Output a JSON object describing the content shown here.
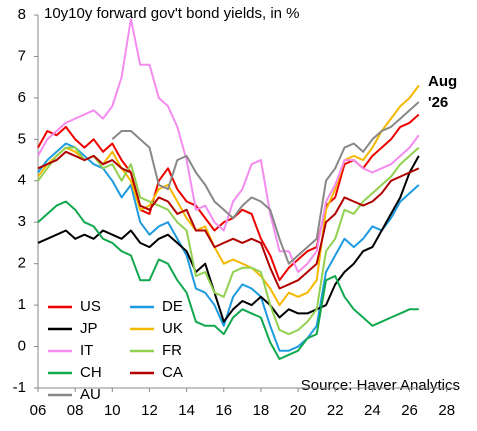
{
  "chart_data": {
    "type": "line",
    "title": "10y10y forward gov't bond yields, in %",
    "annotations": [
      "Aug",
      "'26"
    ],
    "source": "Source: Haver Analytics",
    "annotation_color": "#e00000",
    "legend": "lower left",
    "xlim": [
      2006,
      2028.5
    ],
    "ylim": [
      -1,
      8
    ],
    "yticks": [
      -1,
      0,
      1,
      2,
      3,
      4,
      5,
      6,
      7,
      8
    ],
    "xticks": [
      {
        "value": 2006,
        "label": "06"
      },
      {
        "value": 2008,
        "label": "08"
      },
      {
        "value": 2010,
        "label": "10"
      },
      {
        "value": 2012,
        "label": "12"
      },
      {
        "value": 2014,
        "label": "14"
      },
      {
        "value": 2016,
        "label": "16"
      },
      {
        "value": 2018,
        "label": "18"
      },
      {
        "value": 2020,
        "label": "20"
      },
      {
        "value": 2022,
        "label": "22"
      },
      {
        "value": 2024,
        "label": "24"
      },
      {
        "value": 2026,
        "label": "26"
      },
      {
        "value": 2028,
        "label": "28"
      }
    ],
    "x": [
      2006,
      2006.5,
      2007,
      2007.5,
      2008,
      2008.5,
      2009,
      2009.5,
      2010,
      2010.5,
      2011,
      2011.5,
      2012,
      2012.5,
      2013,
      2013.5,
      2014,
      2014.5,
      2015,
      2015.5,
      2016,
      2016.5,
      2017,
      2017.5,
      2018,
      2018.5,
      2019,
      2019.5,
      2020,
      2020.5,
      2021,
      2021.5,
      2022,
      2022.5,
      2023,
      2023.5,
      2024,
      2024.5,
      2025,
      2025.5,
      2026,
      2026.5
    ],
    "series": [
      {
        "name": "US",
        "color": "#ee0000",
        "values": [
          4.8,
          5.2,
          5.1,
          5.3,
          5.0,
          4.8,
          5.0,
          4.7,
          4.9,
          4.5,
          4.2,
          3.3,
          3.2,
          4.0,
          4.3,
          3.8,
          3.5,
          3.4,
          3.1,
          2.8,
          3.0,
          3.1,
          3.3,
          3.2,
          2.6,
          2.2,
          1.6,
          1.9,
          2.1,
          2.3,
          2.4,
          3.4,
          3.6,
          4.4,
          4.5,
          4.3,
          4.6,
          4.8,
          5.0,
          5.3,
          5.4,
          5.6
        ]
      },
      {
        "name": "DE",
        "color": "#1e9be0",
        "values": [
          4.2,
          4.5,
          4.7,
          4.9,
          4.8,
          4.6,
          4.4,
          4.3,
          4.0,
          3.6,
          3.9,
          3.0,
          2.7,
          2.9,
          3.0,
          2.6,
          2.2,
          1.4,
          1.3,
          1.0,
          0.5,
          1.2,
          1.5,
          1.4,
          1.2,
          0.5,
          -0.1,
          -0.1,
          0.0,
          0.2,
          0.5,
          1.8,
          2.2,
          2.6,
          2.4,
          2.6,
          2.9,
          2.8,
          3.1,
          3.5,
          3.7,
          3.9
        ]
      },
      {
        "name": "JP",
        "color": "#000000",
        "values": [
          2.5,
          2.6,
          2.7,
          2.8,
          2.6,
          2.7,
          2.6,
          2.8,
          2.7,
          2.6,
          2.8,
          2.5,
          2.4,
          2.6,
          2.7,
          2.5,
          2.3,
          1.8,
          2.0,
          1.3,
          0.6,
          0.9,
          1.1,
          1.0,
          1.2,
          1.0,
          0.7,
          0.9,
          0.8,
          0.8,
          0.9,
          1.0,
          1.5,
          1.8,
          2.0,
          2.3,
          2.4,
          2.8,
          3.2,
          3.6,
          4.2,
          4.6
        ]
      },
      {
        "name": "UK",
        "color": "#f5b800",
        "values": [
          4.1,
          4.4,
          4.6,
          4.8,
          4.7,
          4.5,
          4.6,
          4.4,
          4.7,
          4.3,
          4.0,
          3.3,
          3.4,
          3.8,
          3.9,
          3.5,
          3.1,
          2.8,
          2.9,
          2.4,
          2.0,
          2.1,
          2.0,
          1.9,
          1.7,
          1.4,
          1.0,
          1.3,
          1.2,
          1.3,
          1.6,
          3.3,
          3.8,
          4.5,
          4.6,
          4.5,
          4.8,
          5.2,
          5.5,
          5.8,
          6.0,
          6.3
        ]
      },
      {
        "name": "IT",
        "color": "#f48cf0",
        "values": [
          4.6,
          5.0,
          5.2,
          5.4,
          5.5,
          5.6,
          5.7,
          5.5,
          5.8,
          6.5,
          7.9,
          6.8,
          6.8,
          6.0,
          5.8,
          5.3,
          4.5,
          3.3,
          3.4,
          3.0,
          2.8,
          3.5,
          3.8,
          4.4,
          4.5,
          3.2,
          2.3,
          2.3,
          1.8,
          2.0,
          2.3,
          3.5,
          3.9,
          4.5,
          4.5,
          4.3,
          4.2,
          4.3,
          4.4,
          4.6,
          4.8,
          5.1
        ]
      },
      {
        "name": "FR",
        "color": "#92d050",
        "values": [
          4.0,
          4.3,
          4.6,
          4.8,
          4.8,
          4.5,
          4.6,
          4.3,
          4.4,
          4.0,
          4.4,
          3.6,
          3.5,
          3.4,
          3.3,
          3.0,
          2.8,
          1.7,
          1.8,
          1.3,
          1.2,
          1.8,
          1.9,
          1.9,
          1.8,
          1.0,
          0.4,
          0.3,
          0.4,
          0.6,
          0.9,
          2.3,
          2.6,
          3.3,
          3.2,
          3.5,
          3.7,
          3.9,
          4.1,
          4.4,
          4.6,
          4.8
        ]
      },
      {
        "name": "CH",
        "color": "#12a84e",
        "values": [
          3.0,
          3.2,
          3.4,
          3.5,
          3.3,
          3.0,
          2.9,
          2.6,
          2.5,
          2.3,
          2.2,
          1.6,
          1.6,
          2.1,
          2.0,
          1.6,
          1.3,
          0.6,
          0.5,
          0.5,
          0.3,
          0.7,
          0.9,
          0.8,
          0.7,
          0.1,
          -0.3,
          -0.2,
          -0.1,
          0.2,
          0.3,
          1.6,
          1.7,
          1.2,
          0.9,
          0.7,
          0.5,
          0.6,
          0.7,
          0.8,
          0.9,
          0.9
        ]
      },
      {
        "name": "CA",
        "color": "#b00000",
        "values": [
          4.3,
          4.4,
          4.5,
          4.7,
          4.6,
          4.5,
          4.6,
          4.4,
          4.5,
          4.3,
          4.2,
          3.4,
          3.3,
          3.6,
          3.5,
          3.2,
          3.3,
          2.8,
          2.8,
          2.4,
          2.5,
          2.6,
          2.5,
          2.6,
          2.5,
          1.9,
          1.4,
          1.5,
          1.6,
          1.8,
          2.0,
          3.0,
          3.2,
          3.6,
          3.5,
          3.4,
          3.5,
          3.7,
          4.0,
          4.1,
          4.2,
          4.3
        ]
      },
      {
        "name": "AU",
        "color": "#888888",
        "values": [
          null,
          null,
          null,
          null,
          null,
          null,
          null,
          null,
          5.0,
          5.2,
          5.2,
          5.0,
          4.8,
          3.9,
          3.8,
          4.5,
          4.6,
          4.2,
          3.9,
          3.5,
          3.3,
          3.1,
          3.4,
          3.6,
          3.5,
          3.3,
          2.6,
          2.0,
          2.2,
          2.4,
          2.6,
          4.0,
          4.3,
          4.8,
          4.9,
          4.7,
          5.0,
          5.2,
          5.3,
          5.5,
          5.7,
          5.9
        ]
      }
    ]
  }
}
